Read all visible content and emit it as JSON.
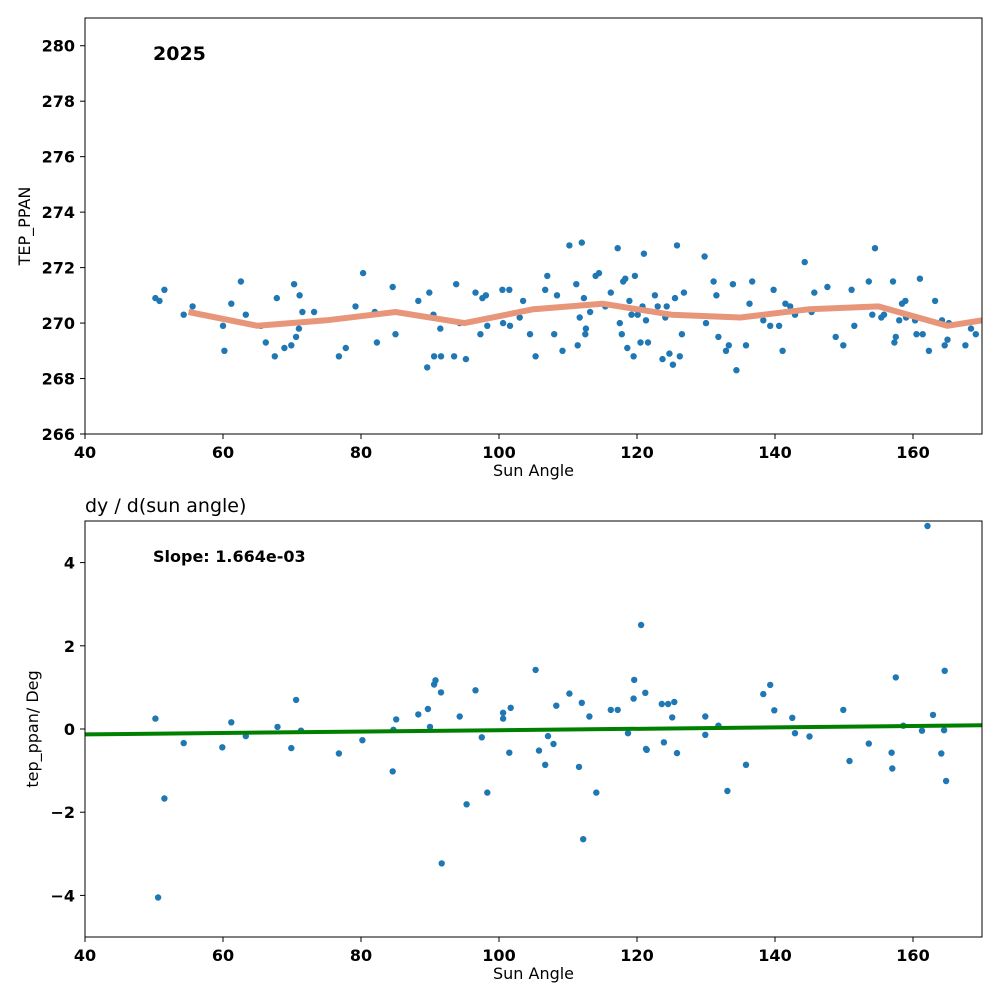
{
  "chart_data": [
    {
      "type": "scatter",
      "title": "",
      "annotation": "2025",
      "xlabel": "Sun Angle",
      "ylabel": "TEP_PPAN",
      "xlim": [
        40,
        170
      ],
      "ylim": [
        266,
        281
      ],
      "xticks": [
        40,
        60,
        80,
        100,
        120,
        140,
        160
      ],
      "yticks": [
        266,
        268,
        270,
        272,
        274,
        276,
        278,
        280
      ],
      "grid": false,
      "colors": {
        "points": "#1f77b4",
        "trend": "#e8967a"
      },
      "series": [
        {
          "type": "scatter",
          "points": [
            [
              50.2,
              270.9
            ],
            [
              50.8,
              270.8
            ],
            [
              51.5,
              271.2
            ],
            [
              54.3,
              270.3
            ],
            [
              55.6,
              270.6
            ],
            [
              60.0,
              269.9
            ],
            [
              60.2,
              269.0
            ],
            [
              61.2,
              270.7
            ],
            [
              62.6,
              271.5
            ],
            [
              63.3,
              270.3
            ],
            [
              65.5,
              269.9
            ],
            [
              66.2,
              269.3
            ],
            [
              67.5,
              268.8
            ],
            [
              67.8,
              270.9
            ],
            [
              68.9,
              269.1
            ],
            [
              69.9,
              269.2
            ],
            [
              70.3,
              271.4
            ],
            [
              70.6,
              269.5
            ],
            [
              71.0,
              269.8
            ],
            [
              71.1,
              271.0
            ],
            [
              71.5,
              270.4
            ],
            [
              73.2,
              270.4
            ],
            [
              76.8,
              268.8
            ],
            [
              77.8,
              269.1
            ],
            [
              79.2,
              270.6
            ],
            [
              80.3,
              271.8
            ],
            [
              82.0,
              270.4
            ],
            [
              82.3,
              269.3
            ],
            [
              84.6,
              271.3
            ],
            [
              85.0,
              269.6
            ],
            [
              88.3,
              270.8
            ],
            [
              89.6,
              268.4
            ],
            [
              89.9,
              271.1
            ],
            [
              90.5,
              270.3
            ],
            [
              90.6,
              268.8
            ],
            [
              91.5,
              269.8
            ],
            [
              91.6,
              268.8
            ],
            [
              93.5,
              268.8
            ],
            [
              93.8,
              271.4
            ],
            [
              94.3,
              270.0
            ],
            [
              95.2,
              268.7
            ],
            [
              96.6,
              271.1
            ],
            [
              97.3,
              269.6
            ],
            [
              97.6,
              270.9
            ],
            [
              98.1,
              271.0
            ],
            [
              98.3,
              269.9
            ],
            [
              100.5,
              271.2
            ],
            [
              100.6,
              270.0
            ],
            [
              101.5,
              271.2
            ],
            [
              101.6,
              269.9
            ],
            [
              103.0,
              270.2
            ],
            [
              103.5,
              270.8
            ],
            [
              104.5,
              269.6
            ],
            [
              105.3,
              268.8
            ],
            [
              106.7,
              271.2
            ],
            [
              107.0,
              271.7
            ],
            [
              108.0,
              269.6
            ],
            [
              108.4,
              271.0
            ],
            [
              109.2,
              269.0
            ],
            [
              110.2,
              272.8
            ],
            [
              111.2,
              271.4
            ],
            [
              111.4,
              269.2
            ],
            [
              111.7,
              270.2
            ],
            [
              112.0,
              272.9
            ],
            [
              112.3,
              270.9
            ],
            [
              112.5,
              269.6
            ],
            [
              112.6,
              269.8
            ],
            [
              113.2,
              270.4
            ],
            [
              114.0,
              271.7
            ],
            [
              114.5,
              271.8
            ],
            [
              115.4,
              270.6
            ],
            [
              116.2,
              271.1
            ],
            [
              117.2,
              272.7
            ],
            [
              117.5,
              270.0
            ],
            [
              117.8,
              269.6
            ],
            [
              118.0,
              271.5
            ],
            [
              118.3,
              271.6
            ],
            [
              118.6,
              269.1
            ],
            [
              118.9,
              270.8
            ],
            [
              119.2,
              270.3
            ],
            [
              119.5,
              268.8
            ],
            [
              119.7,
              271.7
            ],
            [
              120.1,
              270.3
            ],
            [
              120.5,
              269.3
            ],
            [
              120.8,
              270.6
            ],
            [
              121.0,
              272.5
            ],
            [
              121.3,
              270.1
            ],
            [
              121.6,
              269.3
            ],
            [
              122.6,
              271.0
            ],
            [
              123.0,
              270.6
            ],
            [
              123.7,
              268.7
            ],
            [
              124.1,
              270.2
            ],
            [
              124.3,
              270.6
            ],
            [
              124.7,
              268.9
            ],
            [
              125.2,
              268.5
            ],
            [
              125.5,
              270.9
            ],
            [
              125.8,
              272.8
            ],
            [
              126.2,
              268.8
            ],
            [
              126.5,
              269.6
            ],
            [
              126.8,
              271.1
            ],
            [
              129.8,
              272.4
            ],
            [
              130.0,
              270.0
            ],
            [
              131.1,
              271.5
            ],
            [
              131.5,
              271.0
            ],
            [
              131.8,
              269.5
            ],
            [
              132.9,
              269.0
            ],
            [
              133.3,
              269.2
            ],
            [
              133.9,
              271.4
            ],
            [
              134.4,
              268.3
            ],
            [
              135.8,
              269.2
            ],
            [
              136.3,
              270.7
            ],
            [
              136.7,
              271.5
            ],
            [
              138.3,
              270.1
            ],
            [
              139.3,
              269.9
            ],
            [
              139.8,
              271.2
            ],
            [
              140.6,
              269.9
            ],
            [
              141.1,
              269.0
            ],
            [
              141.5,
              270.7
            ],
            [
              142.2,
              270.6
            ],
            [
              142.9,
              270.3
            ],
            [
              144.3,
              272.2
            ],
            [
              145.3,
              270.4
            ],
            [
              145.7,
              271.1
            ],
            [
              147.6,
              271.3
            ],
            [
              148.8,
              269.5
            ],
            [
              149.9,
              269.2
            ],
            [
              151.1,
              271.2
            ],
            [
              151.5,
              269.9
            ],
            [
              153.6,
              271.5
            ],
            [
              154.1,
              270.3
            ],
            [
              154.5,
              272.7
            ],
            [
              155.4,
              270.2
            ],
            [
              155.8,
              270.3
            ],
            [
              157.1,
              271.5
            ],
            [
              157.3,
              269.3
            ],
            [
              157.5,
              269.5
            ],
            [
              158.0,
              270.1
            ],
            [
              158.4,
              270.7
            ],
            [
              158.9,
              270.8
            ],
            [
              159.0,
              270.2
            ],
            [
              160.3,
              270.1
            ],
            [
              160.5,
              269.6
            ],
            [
              161.0,
              271.6
            ],
            [
              161.4,
              269.6
            ],
            [
              162.3,
              269.0
            ],
            [
              163.2,
              270.8
            ],
            [
              164.2,
              270.1
            ],
            [
              164.6,
              269.2
            ],
            [
              165.0,
              269.4
            ],
            [
              165.2,
              270.0
            ],
            [
              167.6,
              269.2
            ],
            [
              168.4,
              269.8
            ],
            [
              169.1,
              269.6
            ]
          ]
        },
        {
          "type": "line",
          "points": [
            [
              55.0,
              270.4
            ],
            [
              65.0,
              269.9
            ],
            [
              75.0,
              270.1
            ],
            [
              85.0,
              270.4
            ],
            [
              95.0,
              270.0
            ],
            [
              105.0,
              270.5
            ],
            [
              115.0,
              270.7
            ],
            [
              125.0,
              270.3
            ],
            [
              135.0,
              270.2
            ],
            [
              145.0,
              270.5
            ],
            [
              155.0,
              270.6
            ],
            [
              165.0,
              269.9
            ],
            [
              170.0,
              270.1
            ]
          ]
        }
      ]
    },
    {
      "type": "scatter",
      "title": "dy / d(sun angle)",
      "annotation": "Slope: 1.664e-03",
      "xlabel": "Sun Angle",
      "ylabel": "tep_ppan/ Deg",
      "xlim": [
        40,
        170
      ],
      "ylim": [
        -5,
        5
      ],
      "xticks": [
        40,
        60,
        80,
        100,
        120,
        140,
        160
      ],
      "yticks": [
        -4,
        -2,
        0,
        2,
        4
      ],
      "ytick_labels": [
        "−4",
        "−2",
        "0",
        "2",
        "4"
      ],
      "grid": false,
      "colors": {
        "points": "#1f77b4",
        "trend": "#008000"
      },
      "series": [
        {
          "type": "scatter",
          "points": [
            [
              50.2,
              0.25
            ],
            [
              50.6,
              -4.05
            ],
            [
              51.5,
              -1.67
            ],
            [
              54.3,
              -0.34
            ],
            [
              59.9,
              -0.44
            ],
            [
              61.2,
              0.16
            ],
            [
              63.3,
              -0.17
            ],
            [
              67.9,
              0.05
            ],
            [
              69.9,
              -0.46
            ],
            [
              70.6,
              0.7
            ],
            [
              71.3,
              -0.04
            ],
            [
              76.8,
              -0.59
            ],
            [
              80.2,
              -0.27
            ],
            [
              84.6,
              -1.02
            ],
            [
              84.7,
              -0.02
            ],
            [
              85.1,
              0.23
            ],
            [
              88.3,
              0.35
            ],
            [
              89.7,
              0.48
            ],
            [
              90.0,
              0.05
            ],
            [
              90.6,
              1.07
            ],
            [
              90.8,
              1.17
            ],
            [
              91.6,
              0.88
            ],
            [
              91.7,
              -3.23
            ],
            [
              94.3,
              0.3
            ],
            [
              95.3,
              -1.81
            ],
            [
              96.6,
              0.93
            ],
            [
              97.5,
              -0.2
            ],
            [
              98.3,
              -1.53
            ],
            [
              100.6,
              0.39
            ],
            [
              100.6,
              0.25
            ],
            [
              101.5,
              -0.57
            ],
            [
              101.7,
              0.51
            ],
            [
              105.3,
              1.42
            ],
            [
              105.8,
              -0.52
            ],
            [
              106.7,
              -0.86
            ],
            [
              107.1,
              -0.17
            ],
            [
              107.9,
              -0.36
            ],
            [
              108.3,
              0.56
            ],
            [
              110.2,
              0.85
            ],
            [
              111.6,
              -0.91
            ],
            [
              112.0,
              0.63
            ],
            [
              112.2,
              -2.65
            ],
            [
              113.1,
              0.3
            ],
            [
              114.1,
              -1.53
            ],
            [
              116.2,
              0.46
            ],
            [
              117.2,
              0.46
            ],
            [
              118.7,
              -0.1
            ],
            [
              119.5,
              0.73
            ],
            [
              119.6,
              1.18
            ],
            [
              120.6,
              2.5
            ],
            [
              121.2,
              0.87
            ],
            [
              121.3,
              -0.48
            ],
            [
              121.4,
              -0.5
            ],
            [
              123.6,
              0.6
            ],
            [
              123.9,
              -0.32
            ],
            [
              124.5,
              0.6
            ],
            [
              125.1,
              0.28
            ],
            [
              125.4,
              0.65
            ],
            [
              125.8,
              -0.58
            ],
            [
              129.9,
              0.3
            ],
            [
              129.9,
              -0.14
            ],
            [
              131.8,
              0.08
            ],
            [
              133.1,
              -1.49
            ],
            [
              135.8,
              -0.86
            ],
            [
              138.3,
              0.84
            ],
            [
              139.3,
              1.06
            ],
            [
              139.9,
              0.45
            ],
            [
              142.5,
              0.27
            ],
            [
              142.9,
              -0.1
            ],
            [
              145.0,
              -0.18
            ],
            [
              149.9,
              0.46
            ],
            [
              150.8,
              -0.77
            ],
            [
              153.6,
              -0.35
            ],
            [
              156.9,
              -0.57
            ],
            [
              157.0,
              -0.95
            ],
            [
              157.5,
              1.24
            ],
            [
              158.6,
              0.08
            ],
            [
              161.3,
              -0.04
            ],
            [
              162.1,
              4.88
            ],
            [
              162.9,
              0.34
            ],
            [
              164.1,
              -0.59
            ],
            [
              164.5,
              -0.03
            ],
            [
              164.6,
              1.4
            ],
            [
              164.8,
              -1.25
            ]
          ]
        },
        {
          "type": "line",
          "points": [
            [
              40.0,
              -0.13
            ],
            [
              170.0,
              0.09
            ]
          ]
        }
      ]
    }
  ]
}
